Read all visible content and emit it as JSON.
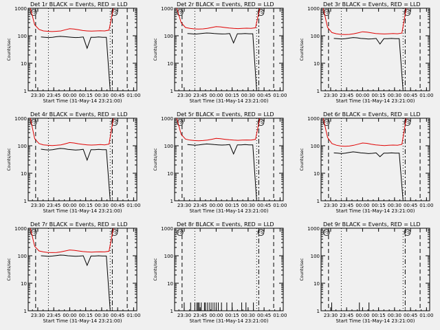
{
  "chart_data": [
    {
      "type": "line",
      "title": "Det 1r BLACK = Events, RED = LLD",
      "xlabel": "Start Time (31-May-14 23:21:00)",
      "ylabel": "Counts/sec",
      "x_ticks": [
        "23:30",
        "23:45",
        "00:00",
        "00:15",
        "00:30",
        "00:45",
        "01:00"
      ],
      "y_ticks": [
        "1",
        "10",
        "100",
        "1000"
      ],
      "ylim": [
        1,
        1000
      ],
      "y_scale": "log",
      "region_labels": [
        "FS",
        "FS"
      ],
      "series": [
        {
          "color": "#000000",
          "values": [
            90,
            88,
            86,
            88,
            92,
            95,
            93,
            90,
            88,
            86,
            87,
            90,
            35,
            88,
            88,
            90,
            88,
            88,
            1
          ]
        },
        {
          "color": "#e00000",
          "values": [
            1000,
            250,
            170,
            150,
            145,
            142,
            145,
            150,
            165,
            180,
            175,
            165,
            155,
            150,
            148,
            150,
            152,
            150,
            160,
            1000
          ]
        }
      ]
    },
    {
      "type": "line",
      "title": "Det 2r BLACK = Events, RED = LLD",
      "xlabel": "Start Time (31-May-14 23:21:00)",
      "ylabel": "Counts/sec",
      "x_ticks": [
        "23:30",
        "23:45",
        "00:00",
        "00:15",
        "00:30",
        "00:45",
        "01:00"
      ],
      "y_ticks": [
        "1",
        "10",
        "100",
        "1000"
      ],
      "ylim": [
        1,
        1000
      ],
      "y_scale": "log",
      "region_labels": [
        "FS",
        "FS"
      ],
      "series": [
        {
          "color": "#000000",
          "values": [
            120,
            118,
            115,
            118,
            122,
            126,
            124,
            120,
            118,
            116,
            117,
            120,
            55,
            118,
            118,
            120,
            118,
            118,
            1
          ]
        },
        {
          "color": "#e00000",
          "values": [
            1000,
            300,
            200,
            185,
            178,
            175,
            178,
            185,
            200,
            215,
            210,
            200,
            190,
            185,
            182,
            185,
            188,
            185,
            195,
            1000
          ]
        }
      ]
    },
    {
      "type": "line",
      "title": "Det 3r BLACK = Events, RED = LLD",
      "xlabel": "Start Time (31-May-14 23:21:00)",
      "ylabel": "Counts/sec",
      "x_ticks": [
        "23:30",
        "23:45",
        "00:00",
        "00:15",
        "00:30",
        "00:45",
        "01:00"
      ],
      "y_ticks": [
        "1",
        "10",
        "100",
        "1000"
      ],
      "ylim": [
        1,
        1000
      ],
      "y_scale": "log",
      "region_labels": [
        "FS",
        "FS"
      ],
      "series": [
        {
          "color": "#000000",
          "values": [
            80,
            78,
            76,
            78,
            82,
            86,
            84,
            80,
            78,
            76,
            77,
            80,
            50,
            78,
            78,
            80,
            78,
            78,
            1
          ]
        },
        {
          "color": "#e00000",
          "values": [
            1000,
            200,
            130,
            118,
            112,
            110,
            112,
            118,
            128,
            140,
            136,
            128,
            120,
            118,
            116,
            118,
            120,
            118,
            125,
            1000
          ]
        }
      ]
    },
    {
      "type": "line",
      "title": "Det 4r BLACK = Events, RED = LLD",
      "xlabel": "Start Time (31-May-14 23:21:00)",
      "ylabel": "Counts/sec",
      "x_ticks": [
        "23:30",
        "23:45",
        "00:00",
        "00:15",
        "00:30",
        "00:45",
        "01:00"
      ],
      "y_ticks": [
        "1",
        "10",
        "100",
        "1000"
      ],
      "ylim": [
        1,
        1000
      ],
      "y_scale": "log",
      "region_labels": [
        "FS",
        "FS"
      ],
      "series": [
        {
          "color": "#000000",
          "values": [
            75,
            72,
            70,
            72,
            76,
            80,
            78,
            74,
            72,
            70,
            71,
            74,
            30,
            72,
            72,
            74,
            72,
            72,
            1
          ]
        },
        {
          "color": "#e00000",
          "values": [
            1000,
            180,
            120,
            108,
            104,
            102,
            104,
            108,
            118,
            130,
            126,
            118,
            112,
            108,
            106,
            108,
            110,
            108,
            115,
            1000
          ]
        }
      ]
    },
    {
      "type": "line",
      "title": "Det 5r BLACK = Events, RED = LLD",
      "xlabel": "Start Time (31-May-14 23:21:00)",
      "ylabel": "Counts/sec",
      "x_ticks": [
        "23:30",
        "23:45",
        "00:00",
        "00:15",
        "00:30",
        "00:45",
        "01:00"
      ],
      "y_ticks": [
        "1",
        "10",
        "100",
        "1000"
      ],
      "ylim": [
        1,
        1000
      ],
      "y_scale": "log",
      "region_labels": [
        "FS",
        "FS"
      ],
      "series": [
        {
          "color": "#000000",
          "values": [
            110,
            108,
            105,
            108,
            112,
            116,
            114,
            110,
            108,
            106,
            107,
            110,
            50,
            108,
            108,
            110,
            108,
            108,
            1
          ]
        },
        {
          "color": "#e00000",
          "values": [
            1000,
            260,
            175,
            160,
            155,
            152,
            155,
            160,
            172,
            185,
            180,
            172,
            165,
            160,
            158,
            160,
            162,
            160,
            170,
            1000
          ]
        }
      ]
    },
    {
      "type": "line",
      "title": "Det 6r BLACK = Events, RED = LLD",
      "xlabel": "Start Time (31-May-14 23:21:00)",
      "ylabel": "Counts/sec",
      "x_ticks": [
        "23:30",
        "23:45",
        "00:00",
        "00:15",
        "00:30",
        "00:45",
        "01:00"
      ],
      "y_ticks": [
        "1",
        "10",
        "100",
        "1000"
      ],
      "ylim": [
        1,
        1000
      ],
      "y_scale": "log",
      "region_labels": [
        "FS",
        "FS"
      ],
      "series": [
        {
          "color": "#000000",
          "values": [
            55,
            54,
            52,
            54,
            57,
            60,
            58,
            55,
            54,
            52,
            53,
            55,
            40,
            54,
            54,
            55,
            54,
            54,
            1
          ]
        },
        {
          "color": "#e00000",
          "values": [
            1000,
            200,
            120,
            105,
            98,
            96,
            98,
            104,
            114,
            126,
            122,
            114,
            108,
            104,
            102,
            104,
            106,
            104,
            112,
            1000
          ]
        }
      ]
    },
    {
      "type": "line",
      "title": "Det 7r BLACK = Events, RED = LLD",
      "xlabel": "Start Time (31-May-14 23:21:00)",
      "ylabel": "Counts/sec",
      "x_ticks": [
        "23:30",
        "23:45",
        "00:00",
        "00:15",
        "00:30",
        "00:45",
        "01:00"
      ],
      "y_ticks": [
        "1",
        "10",
        "100",
        "1000"
      ],
      "ylim": [
        1,
        1000
      ],
      "y_scale": "log",
      "region_labels": [
        "FS",
        "FS"
      ],
      "series": [
        {
          "color": "#000000",
          "values": [
            100,
            98,
            95,
            98,
            102,
            106,
            104,
            100,
            98,
            96,
            97,
            100,
            45,
            98,
            98,
            100,
            98,
            98,
            1
          ]
        },
        {
          "color": "#e00000",
          "values": [
            1000,
            220,
            150,
            138,
            132,
            130,
            132,
            138,
            150,
            162,
            158,
            150,
            142,
            138,
            136,
            138,
            140,
            138,
            146,
            1000
          ]
        }
      ]
    },
    {
      "type": "line",
      "title": "Det 8r BLACK = Events, RED = LLD",
      "xlabel": "Start Time (31-May-14 23:21:00)",
      "ylabel": "Counts/sec",
      "x_ticks": [
        "23:30",
        "23:45",
        "00:00",
        "00:15",
        "00:30",
        "00:45",
        "01:00"
      ],
      "y_ticks": [
        "1",
        "10",
        "100",
        "1000"
      ],
      "ylim": [
        1,
        1000
      ],
      "y_scale": "log",
      "region_labels": [
        "FS",
        "FS"
      ],
      "spikes": [
        {
          "time": "23:30",
          "value": 2
        },
        {
          "time": "23:36",
          "value": 2
        },
        {
          "time": "23:40",
          "value": 2
        },
        {
          "time": "23:42",
          "value": 2
        },
        {
          "time": "23:43",
          "value": 2
        },
        {
          "time": "23:44",
          "value": 2
        },
        {
          "time": "23:46",
          "value": 2
        },
        {
          "time": "23:49",
          "value": 2
        },
        {
          "time": "23:50",
          "value": 2
        },
        {
          "time": "23:52",
          "value": 2
        },
        {
          "time": "23:54",
          "value": 2
        },
        {
          "time": "23:56",
          "value": 2
        },
        {
          "time": "23:58",
          "value": 2
        },
        {
          "time": "00:00",
          "value": 2
        },
        {
          "time": "00:02",
          "value": 2
        },
        {
          "time": "00:05",
          "value": 2
        },
        {
          "time": "00:10",
          "value": 2
        },
        {
          "time": "00:15",
          "value": 2
        },
        {
          "time": "00:24",
          "value": 2
        },
        {
          "time": "00:28",
          "value": 2
        },
        {
          "time": "00:35",
          "value": 2
        }
      ]
    },
    {
      "type": "line",
      "title": "Det 9r BLACK = Events, RED = LLD",
      "xlabel": "Start Time (31-May-14 23:21:00)",
      "ylabel": "Counts/sec",
      "x_ticks": [
        "23:30",
        "23:45",
        "00:00",
        "00:15",
        "00:30",
        "00:45",
        "01:00"
      ],
      "y_ticks": [
        "1",
        "10",
        "100",
        "1000"
      ],
      "ylim": [
        1,
        1000
      ],
      "y_scale": "log",
      "region_labels": [
        "FS",
        "FS"
      ],
      "spikes": [
        {
          "time": "23:31",
          "value": 2
        },
        {
          "time": "23:57",
          "value": 2
        },
        {
          "time": "00:06",
          "value": 2
        }
      ]
    }
  ]
}
